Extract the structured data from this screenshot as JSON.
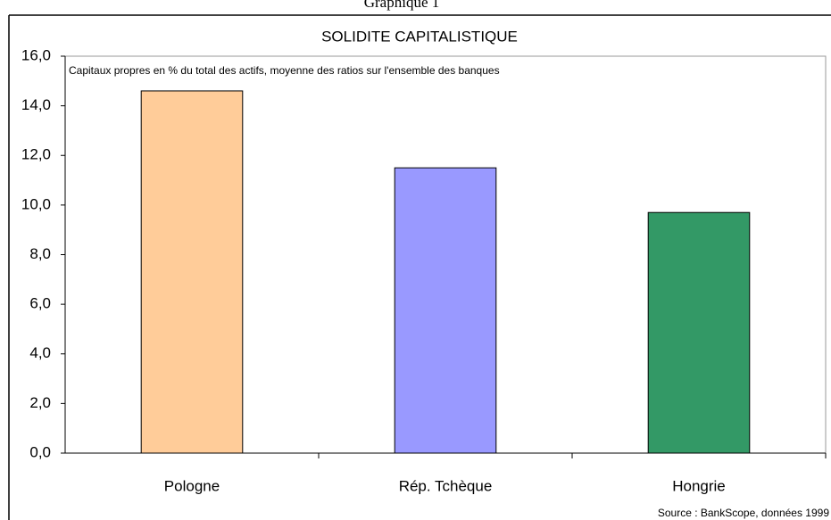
{
  "header": "Graphique 1",
  "chart_data": {
    "type": "bar",
    "title": "SOLIDITE CAPITALISTIQUE",
    "subtitle": "Capitaux propres en % du total des actifs, moyenne des ratios sur l'ensemble des banques",
    "source": "Source : BankScope, données 1999",
    "categories": [
      "Pologne",
      "Rép. Tchèque",
      "Hongrie"
    ],
    "values": [
      14.6,
      11.5,
      9.7
    ],
    "colors": [
      "#ffcc99",
      "#9999ff",
      "#339966"
    ],
    "ylim": [
      0,
      16
    ],
    "yticks": [
      {
        "value": 0,
        "label": "0,0"
      },
      {
        "value": 2,
        "label": "2,0"
      },
      {
        "value": 4,
        "label": "4,0"
      },
      {
        "value": 6,
        "label": "6,0"
      },
      {
        "value": 8,
        "label": "8,0"
      },
      {
        "value": 10,
        "label": "10,0"
      },
      {
        "value": 12,
        "label": "12,0"
      },
      {
        "value": 14,
        "label": "14,0"
      },
      {
        "value": 16,
        "label": "16,0"
      }
    ],
    "grid": false
  }
}
